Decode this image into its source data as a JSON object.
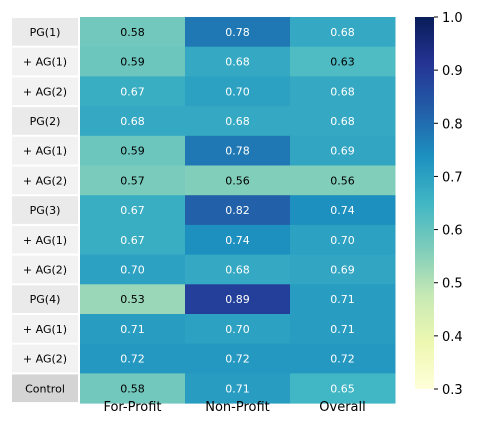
{
  "chart_data": {
    "type": "heatmap",
    "title": "",
    "xlabel": "",
    "ylabel": "",
    "columns": [
      "For-Profit",
      "Non-Profit",
      "Overall"
    ],
    "rows": [
      "PG(1)",
      "+ AG(1)",
      "+ AG(2)",
      "PG(2)",
      "+ AG(1)",
      "+ AG(2)",
      "PG(3)",
      "+ AG(1)",
      "+ AG(2)",
      "PG(4)",
      "+ AG(1)",
      "+ AG(2)",
      "Control"
    ],
    "values": [
      [
        "0.58",
        "0.78",
        "0.68"
      ],
      [
        "0.59",
        "0.68",
        "0.63"
      ],
      [
        "0.67",
        "0.70",
        "0.68"
      ],
      [
        "0.68",
        "0.68",
        "0.68"
      ],
      [
        "0.59",
        "0.78",
        "0.69"
      ],
      [
        "0.57",
        "0.56",
        "0.56"
      ],
      [
        "0.67",
        "0.82",
        "0.74"
      ],
      [
        "0.67",
        "0.74",
        "0.70"
      ],
      [
        "0.70",
        "0.68",
        "0.69"
      ],
      [
        "0.53",
        "0.89",
        "0.71"
      ],
      [
        "0.71",
        "0.70",
        "0.71"
      ],
      [
        "0.72",
        "0.72",
        "0.72"
      ],
      [
        "0.58",
        "0.71",
        "0.65"
      ]
    ],
    "row_groups": [
      "primary",
      "sub",
      "sub",
      "primary",
      "sub",
      "sub",
      "primary",
      "sub",
      "sub",
      "primary",
      "sub",
      "sub",
      "control"
    ],
    "colorbar": {
      "min": 0.3,
      "max": 1.0,
      "ticks": [
        "0.3",
        "0.4",
        "0.5",
        "0.6",
        "0.7",
        "0.8",
        "0.9",
        "1.0"
      ],
      "colormap": "YlGnBu"
    },
    "row_label_colors": {
      "primary": "#eaeaea",
      "sub": "#f2f2f2",
      "control": "#d4d4d4"
    }
  }
}
